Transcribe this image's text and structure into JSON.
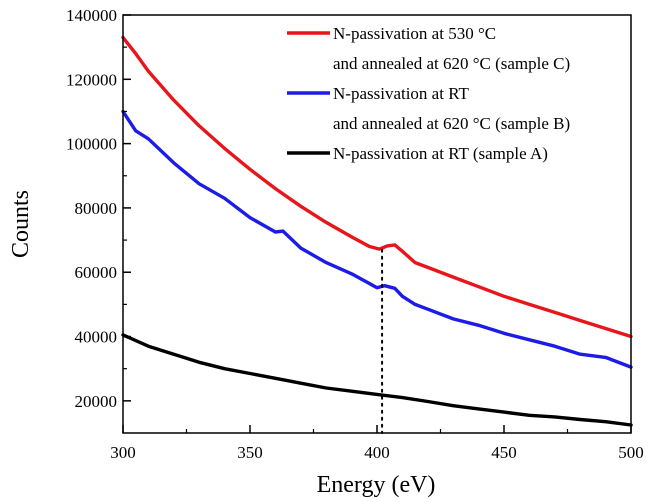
{
  "chart_data": {
    "type": "line",
    "xlabel": "Energy (eV)",
    "ylabel": "Counts",
    "xlim": [
      300,
      500
    ],
    "ylim": [
      10000,
      140000
    ],
    "x_ticks": [
      300,
      350,
      400,
      450,
      500
    ],
    "x_tick_labels": [
      "300",
      "350",
      "400",
      "450",
      "500"
    ],
    "y_ticks": [
      20000,
      40000,
      60000,
      80000,
      100000,
      120000,
      140000
    ],
    "y_tick_labels": [
      "20000",
      "40000",
      "60000",
      "80000",
      "100000",
      "120000",
      "140000"
    ],
    "grid": false,
    "legend_position": "top-right",
    "annotation": {
      "type": "vertical-dotted-line",
      "x": 402
    },
    "series": [
      {
        "legend_lines": [
          "N-passivation at 530 °C",
          "and annealed at 620 °C (sample C)"
        ],
        "color": "#e8161b",
        "points": [
          [
            300,
            133000
          ],
          [
            305,
            128000
          ],
          [
            310,
            122500
          ],
          [
            320,
            113500
          ],
          [
            330,
            105500
          ],
          [
            340,
            98500
          ],
          [
            350,
            92000
          ],
          [
            360,
            86000
          ],
          [
            370,
            80500
          ],
          [
            380,
            75500
          ],
          [
            390,
            71000
          ],
          [
            397,
            68000
          ],
          [
            401,
            67200
          ],
          [
            404,
            68200
          ],
          [
            407,
            68500
          ],
          [
            410,
            66500
          ],
          [
            415,
            63000
          ],
          [
            420,
            61500
          ],
          [
            430,
            58500
          ],
          [
            440,
            55500
          ],
          [
            450,
            52500
          ],
          [
            460,
            50000
          ],
          [
            470,
            47500
          ],
          [
            480,
            45000
          ],
          [
            490,
            42500
          ],
          [
            500,
            40000
          ]
        ]
      },
      {
        "legend_lines": [
          "N-passivation at RT",
          "and annealed at 620 °C (sample B)"
        ],
        "color": "#1c1ce6",
        "points": [
          [
            300,
            110000
          ],
          [
            305,
            104000
          ],
          [
            310,
            101500
          ],
          [
            320,
            94000
          ],
          [
            330,
            87500
          ],
          [
            340,
            83000
          ],
          [
            350,
            77000
          ],
          [
            360,
            72500
          ],
          [
            363,
            72800
          ],
          [
            370,
            67500
          ],
          [
            380,
            63000
          ],
          [
            390,
            59500
          ],
          [
            397,
            56500
          ],
          [
            400,
            55200
          ],
          [
            403,
            55800
          ],
          [
            407,
            55000
          ],
          [
            410,
            52500
          ],
          [
            415,
            50000
          ],
          [
            420,
            48500
          ],
          [
            430,
            45500
          ],
          [
            440,
            43500
          ],
          [
            450,
            41000
          ],
          [
            460,
            39000
          ],
          [
            470,
            37000
          ],
          [
            480,
            34500
          ],
          [
            490,
            33500
          ],
          [
            500,
            30500
          ]
        ]
      },
      {
        "legend_lines": [
          "N-passivation at RT      (sample A)"
        ],
        "color": "#000000",
        "points": [
          [
            300,
            40500
          ],
          [
            310,
            37000
          ],
          [
            320,
            34500
          ],
          [
            330,
            32000
          ],
          [
            340,
            30000
          ],
          [
            350,
            28500
          ],
          [
            360,
            27000
          ],
          [
            370,
            25500
          ],
          [
            380,
            24000
          ],
          [
            390,
            23000
          ],
          [
            400,
            22000
          ],
          [
            410,
            21000
          ],
          [
            420,
            19800
          ],
          [
            430,
            18500
          ],
          [
            440,
            17500
          ],
          [
            450,
            16500
          ],
          [
            460,
            15500
          ],
          [
            470,
            15000
          ],
          [
            480,
            14200
          ],
          [
            490,
            13500
          ],
          [
            500,
            12500
          ]
        ]
      }
    ]
  }
}
